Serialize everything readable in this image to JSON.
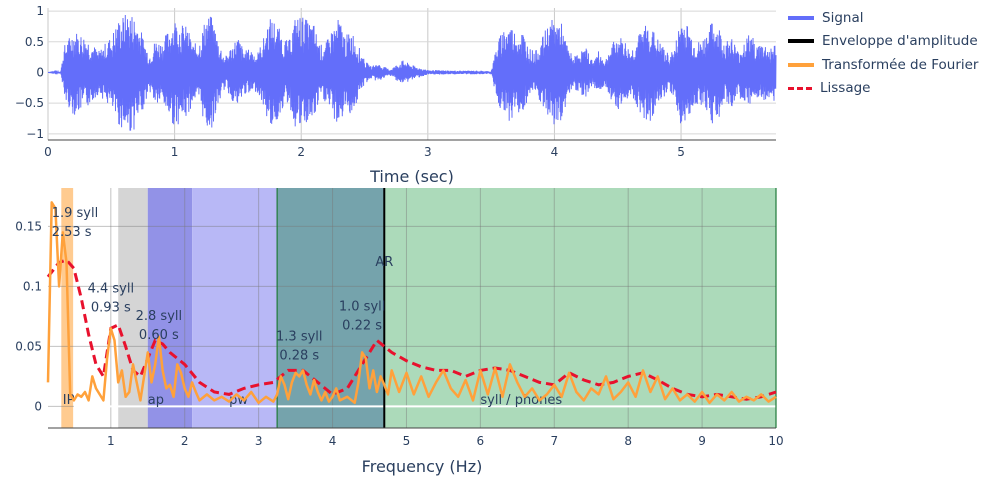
{
  "legend": [
    {
      "name": "Signal",
      "color": "#636efa",
      "style": "solid"
    },
    {
      "name": "Enveloppe d'amplitude",
      "color": "#000000",
      "style": "solid"
    },
    {
      "name": "Transformée de Fourier",
      "color": "#ffa13b",
      "style": "solid"
    },
    {
      "name": "Lissage",
      "color": "#e8112d",
      "style": "dash"
    }
  ],
  "chart_data": [
    {
      "type": "line",
      "title": "",
      "xlabel": "Time (sec)",
      "ylabel": "",
      "xlim": [
        0,
        5.75
      ],
      "ylim": [
        -1.1,
        1.05
      ],
      "x_ticks": [
        "0",
        "1",
        "2",
        "3",
        "4",
        "5"
      ],
      "y_ticks": [
        "1",
        "0.5",
        "0",
        "−0.5",
        "−1"
      ],
      "grid": true,
      "series": [
        {
          "name": "Signal",
          "color": "#636efa",
          "envelope_points": {
            "t": [
              0.0,
              0.1,
              0.13,
              0.2,
              0.3,
              0.4,
              0.5,
              0.55,
              0.6,
              0.65,
              0.7,
              0.75,
              0.8,
              0.85,
              0.9,
              0.95,
              1.0,
              1.05,
              1.1,
              1.15,
              1.2,
              1.25,
              1.3,
              1.35,
              1.4,
              1.45,
              1.5,
              1.55,
              1.6,
              1.65,
              1.7,
              1.75,
              1.8,
              1.85,
              1.9,
              1.95,
              2.0,
              2.05,
              2.1,
              2.15,
              2.2,
              2.25,
              2.3,
              2.35,
              2.4,
              2.45,
              2.5,
              2.55,
              2.6,
              2.7,
              2.8,
              2.9,
              3.0,
              3.2,
              3.4,
              3.5,
              3.55,
              3.6,
              3.65,
              3.7,
              3.75,
              3.8,
              3.85,
              3.9,
              3.95,
              4.0,
              4.05,
              4.1,
              4.15,
              4.2,
              4.25,
              4.3,
              4.35,
              4.4,
              4.45,
              4.5,
              4.55,
              4.6,
              4.65,
              4.7,
              4.75,
              4.8,
              4.85,
              4.9,
              4.95,
              5.0,
              5.05,
              5.1,
              5.15,
              5.2,
              5.25,
              5.3,
              5.35,
              5.4,
              5.45,
              5.5,
              5.55,
              5.6,
              5.65,
              5.7,
              5.75
            ],
            "amp": [
              0.0,
              0.02,
              0.45,
              0.7,
              0.6,
              0.35,
              0.6,
              0.85,
              0.95,
              1.0,
              0.9,
              0.6,
              0.3,
              0.55,
              0.5,
              0.7,
              0.9,
              0.8,
              0.75,
              0.45,
              0.55,
              0.95,
              0.9,
              0.5,
              0.25,
              0.45,
              0.6,
              0.35,
              0.4,
              0.3,
              0.55,
              0.9,
              0.85,
              0.6,
              0.5,
              0.9,
              0.95,
              0.85,
              0.8,
              0.45,
              0.5,
              0.75,
              0.9,
              0.6,
              0.7,
              0.45,
              0.2,
              0.1,
              0.15,
              0.05,
              0.2,
              0.1,
              0.04,
              0.03,
              0.03,
              0.02,
              0.5,
              0.75,
              0.8,
              0.65,
              0.7,
              0.4,
              0.35,
              0.55,
              0.8,
              0.9,
              0.85,
              0.45,
              0.25,
              0.35,
              0.4,
              0.2,
              0.35,
              0.2,
              0.45,
              0.6,
              0.55,
              0.35,
              0.55,
              0.75,
              0.85,
              0.6,
              0.45,
              0.3,
              0.4,
              0.95,
              0.8,
              0.55,
              0.5,
              0.65,
              0.85,
              0.75,
              0.5,
              0.6,
              0.35,
              0.55,
              0.65,
              0.45,
              0.5,
              0.4,
              0.5
            ]
          }
        }
      ]
    },
    {
      "type": "line",
      "title": "",
      "xlabel": "Frequency (Hz)",
      "ylabel": "",
      "xlim": [
        0.15,
        10
      ],
      "ylim": [
        -0.018,
        0.182
      ],
      "x_ticks": [
        1,
        2,
        3,
        4,
        5,
        6,
        7,
        8,
        9,
        10
      ],
      "y_ticks": [
        0,
        0.05,
        0.1,
        0.15
      ],
      "y_tick_labels": [
        "0",
        "0.05",
        "0.1",
        "0.15"
      ],
      "grid": true,
      "bands": [
        {
          "label": "IP",
          "x0": 0.33,
          "x1": 0.49,
          "color": "#ffc88a"
        },
        {
          "label": "",
          "x0": 1.1,
          "x1": 1.5,
          "color": "#d3d3d3"
        },
        {
          "label": "ap",
          "x0": 1.5,
          "x1": 2.1,
          "color": "#8c8ce6"
        },
        {
          "label": "pw",
          "x0": 2.1,
          "x1": 3.25,
          "color": "#b4b4f5"
        },
        {
          "label": "",
          "x0": 3.25,
          "x1": 4.7,
          "color": "#6e9ea8"
        },
        {
          "label": "syll / phones",
          "x0": 4.7,
          "x1": 10.0,
          "color": "#a8d8b6"
        }
      ],
      "vlines": [
        {
          "x": 4.7,
          "label": "AR",
          "color": "#000000"
        },
        {
          "x": 3.25,
          "color": "#1f7a3a"
        },
        {
          "x": 10.0,
          "color": "#1f7a3a"
        }
      ],
      "peak_annotations": [
        {
          "x": 0.2,
          "y": 0.158,
          "line1": "1.9 syll",
          "line2": "2.53 s"
        },
        {
          "x": 1.0,
          "y": 0.095,
          "line1": "4.4 syll",
          "line2": "0.93 s"
        },
        {
          "x": 1.65,
          "y": 0.072,
          "line1": "2.8 syll",
          "line2": "0.60 s"
        },
        {
          "x": 3.55,
          "y": 0.055,
          "line1": "1.3 syll",
          "line2": "0.28 s"
        },
        {
          "x": 4.4,
          "y": 0.08,
          "line1": "1.0 syll",
          "line2": "0.22 s"
        }
      ],
      "series": [
        {
          "name": "Transformée de Fourier",
          "color": "#ffa13b",
          "x": [
            0.15,
            0.2,
            0.25,
            0.3,
            0.35,
            0.4,
            0.45,
            0.5,
            0.55,
            0.6,
            0.65,
            0.7,
            0.75,
            0.8,
            0.85,
            0.9,
            0.95,
            1.0,
            1.05,
            1.1,
            1.15,
            1.2,
            1.25,
            1.3,
            1.35,
            1.4,
            1.45,
            1.5,
            1.55,
            1.6,
            1.65,
            1.7,
            1.75,
            1.8,
            1.85,
            1.9,
            1.95,
            2.0,
            2.05,
            2.1,
            2.15,
            2.2,
            2.3,
            2.4,
            2.5,
            2.6,
            2.7,
            2.8,
            2.9,
            3.0,
            3.1,
            3.2,
            3.25,
            3.3,
            3.35,
            3.4,
            3.45,
            3.5,
            3.55,
            3.6,
            3.65,
            3.7,
            3.75,
            3.8,
            3.85,
            3.9,
            3.95,
            4.0,
            4.05,
            4.1,
            4.2,
            4.3,
            4.35,
            4.4,
            4.45,
            4.5,
            4.55,
            4.6,
            4.65,
            4.7,
            4.75,
            4.8,
            4.9,
            5.0,
            5.1,
            5.2,
            5.3,
            5.4,
            5.5,
            5.6,
            5.7,
            5.8,
            5.9,
            6.0,
            6.1,
            6.2,
            6.3,
            6.4,
            6.5,
            6.6,
            6.7,
            6.8,
            6.9,
            7.0,
            7.1,
            7.2,
            7.3,
            7.4,
            7.5,
            7.6,
            7.7,
            7.8,
            7.9,
            8.0,
            8.1,
            8.2,
            8.3,
            8.4,
            8.5,
            8.6,
            8.7,
            8.8,
            8.9,
            9.0,
            9.1,
            9.2,
            9.3,
            9.4,
            9.5,
            9.6,
            9.7,
            9.8,
            9.9,
            10.0
          ],
          "y": [
            0.02,
            0.17,
            0.165,
            0.1,
            0.145,
            0.12,
            0.01,
            0.005,
            0.01,
            0.008,
            0.012,
            0.005,
            0.025,
            0.015,
            0.01,
            0.005,
            0.04,
            0.065,
            0.055,
            0.02,
            0.03,
            0.008,
            0.012,
            0.035,
            0.02,
            0.005,
            0.025,
            0.045,
            0.02,
            0.035,
            0.058,
            0.03,
            0.015,
            0.018,
            0.008,
            0.035,
            0.028,
            0.015,
            0.008,
            0.02,
            0.012,
            0.005,
            0.01,
            0.005,
            0.008,
            0.004,
            0.01,
            0.005,
            0.012,
            0.003,
            0.008,
            0.004,
            0.01,
            0.025,
            0.018,
            0.006,
            0.02,
            0.028,
            0.025,
            0.03,
            0.018,
            0.01,
            0.022,
            0.012,
            0.005,
            0.012,
            0.004,
            0.008,
            0.015,
            0.005,
            0.008,
            0.003,
            0.02,
            0.045,
            0.04,
            0.015,
            0.03,
            0.012,
            0.025,
            0.018,
            0.01,
            0.03,
            0.012,
            0.028,
            0.01,
            0.025,
            0.008,
            0.02,
            0.03,
            0.015,
            0.008,
            0.022,
            0.005,
            0.03,
            0.01,
            0.032,
            0.008,
            0.035,
            0.02,
            0.008,
            0.015,
            0.005,
            0.01,
            0.018,
            0.008,
            0.028,
            0.012,
            0.005,
            0.015,
            0.01,
            0.025,
            0.006,
            0.012,
            0.02,
            0.008,
            0.03,
            0.012,
            0.025,
            0.006,
            0.015,
            0.005,
            0.01,
            0.004,
            0.012,
            0.003,
            0.01,
            0.005,
            0.012,
            0.004,
            0.008,
            0.005,
            0.01,
            0.004,
            0.008
          ]
        },
        {
          "name": "Lissage",
          "color": "#e8112d",
          "x": [
            0.15,
            0.3,
            0.4,
            0.5,
            0.6,
            0.7,
            0.8,
            0.9,
            1.0,
            1.1,
            1.2,
            1.3,
            1.4,
            1.5,
            1.6,
            1.7,
            1.8,
            2.0,
            2.2,
            2.4,
            2.6,
            2.8,
            3.0,
            3.2,
            3.4,
            3.6,
            3.8,
            4.0,
            4.2,
            4.4,
            4.6,
            4.8,
            5.0,
            5.2,
            5.4,
            5.6,
            5.8,
            6.0,
            6.2,
            6.4,
            6.6,
            6.8,
            7.0,
            7.2,
            7.4,
            7.6,
            7.8,
            8.0,
            8.2,
            8.4,
            8.6,
            8.8,
            9.0,
            9.2,
            9.4,
            9.6,
            9.8,
            10.0
          ],
          "y": [
            0.108,
            0.12,
            0.122,
            0.115,
            0.09,
            0.06,
            0.035,
            0.025,
            0.065,
            0.068,
            0.05,
            0.03,
            0.025,
            0.04,
            0.055,
            0.052,
            0.045,
            0.035,
            0.02,
            0.012,
            0.01,
            0.015,
            0.018,
            0.02,
            0.03,
            0.03,
            0.02,
            0.01,
            0.015,
            0.035,
            0.055,
            0.045,
            0.038,
            0.033,
            0.03,
            0.03,
            0.025,
            0.03,
            0.032,
            0.03,
            0.025,
            0.02,
            0.018,
            0.028,
            0.022,
            0.018,
            0.02,
            0.025,
            0.028,
            0.022,
            0.015,
            0.01,
            0.008,
            0.01,
            0.008,
            0.006,
            0.008,
            0.012
          ]
        },
        {
          "name": "Enveloppe d'amplitude",
          "color": "#000000",
          "x": [],
          "y": []
        }
      ]
    }
  ]
}
